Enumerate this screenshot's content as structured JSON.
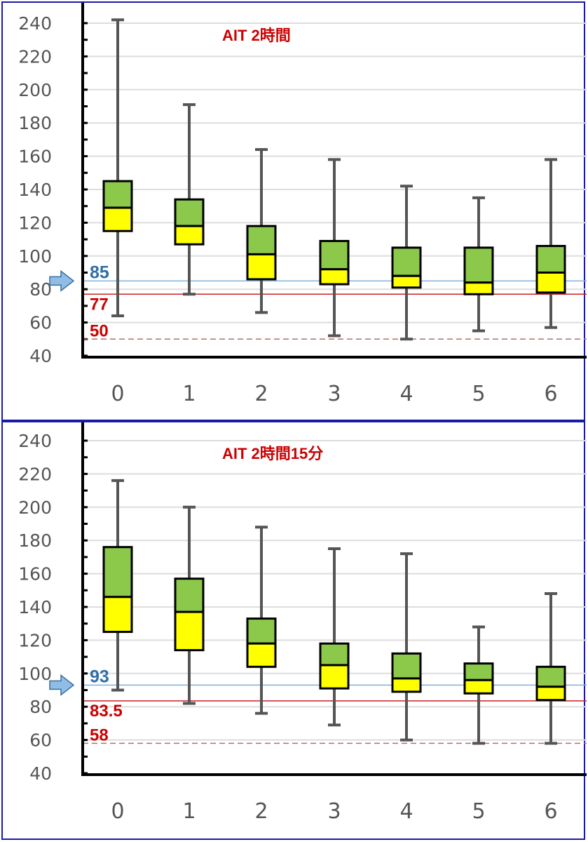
{
  "chart_data": [
    {
      "type": "box",
      "title": "AIT 2時間",
      "categories": [
        "0",
        "1",
        "2",
        "3",
        "4",
        "5",
        "6"
      ],
      "y_ticks": [
        "40",
        "60",
        "80",
        "100",
        "120",
        "140",
        "160",
        "180",
        "200",
        "220",
        "240"
      ],
      "ylim": [
        40,
        240
      ],
      "grid": true,
      "boxes": [
        {
          "min": 64,
          "q1": 115,
          "median": 129,
          "q3": 145,
          "max": 242
        },
        {
          "min": 77,
          "q1": 107,
          "median": 118,
          "q3": 134,
          "max": 191
        },
        {
          "min": 66,
          "q1": 86,
          "median": 101,
          "q3": 118,
          "max": 164
        },
        {
          "min": 52,
          "q1": 83,
          "median": 92,
          "q3": 109,
          "max": 158
        },
        {
          "min": 50,
          "q1": 81,
          "median": 88,
          "q3": 105,
          "max": 142
        },
        {
          "min": 55,
          "q1": 77,
          "median": 84,
          "q3": 105,
          "max": 135
        },
        {
          "min": 57,
          "q1": 78,
          "median": 90,
          "q3": 106,
          "max": 158
        }
      ],
      "reference_lines": [
        {
          "value": 85,
          "label": "85",
          "color": "#2e6fa8",
          "style": "solid-arrow"
        },
        {
          "value": 77,
          "label": "77",
          "color": "#cc0000",
          "style": "solid"
        },
        {
          "value": 50,
          "label": "50",
          "color": "#cc0000",
          "style": "dashed"
        }
      ]
    },
    {
      "type": "box",
      "title": "AIT 2時間15分",
      "categories": [
        "0",
        "1",
        "2",
        "3",
        "4",
        "5",
        "6"
      ],
      "y_ticks": [
        "40",
        "60",
        "80",
        "100",
        "120",
        "140",
        "160",
        "180",
        "200",
        "220",
        "240"
      ],
      "ylim": [
        40,
        240
      ],
      "grid": true,
      "boxes": [
        {
          "min": 90,
          "q1": 125,
          "median": 146,
          "q3": 176,
          "max": 216
        },
        {
          "min": 82,
          "q1": 114,
          "median": 137,
          "q3": 157,
          "max": 200
        },
        {
          "min": 76,
          "q1": 104,
          "median": 118,
          "q3": 133,
          "max": 188
        },
        {
          "min": 69,
          "q1": 91,
          "median": 105,
          "q3": 118,
          "max": 175
        },
        {
          "min": 60,
          "q1": 89,
          "median": 97,
          "q3": 112,
          "max": 172
        },
        {
          "min": 58,
          "q1": 88,
          "median": 96,
          "q3": 106,
          "max": 128
        },
        {
          "min": 58,
          "q1": 84,
          "median": 92,
          "q3": 104,
          "max": 148
        }
      ],
      "reference_lines": [
        {
          "value": 93,
          "label": "93",
          "color": "#2e6fa8",
          "style": "solid-arrow"
        },
        {
          "value": 83.5,
          "label": "83.5",
          "color": "#cc0000",
          "style": "solid"
        },
        {
          "value": 58,
          "label": "58",
          "color": "#cc0000",
          "style": "dashed"
        }
      ]
    }
  ],
  "colors": {
    "upper_box": "#8cc94a",
    "lower_box": "#ffff00",
    "whisker": "#555555",
    "axis": "#000000",
    "grid": "#dddddd",
    "title": "#cc0000"
  }
}
